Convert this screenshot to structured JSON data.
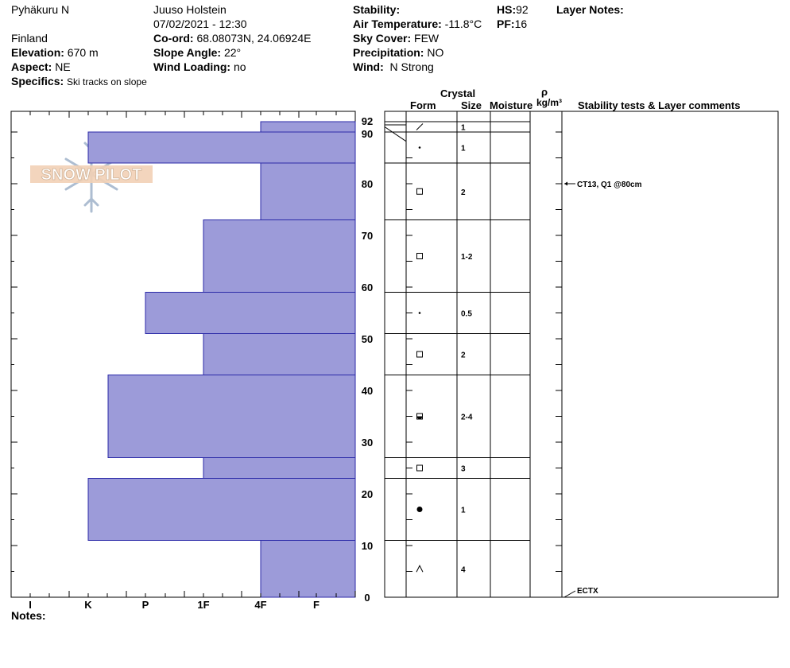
{
  "header": {
    "location": "Pyhäkuru N",
    "country": "Finland",
    "observer": "Juuso Holstein",
    "datetime": "07/02/2021 - 12:30",
    "elevation_label": "Elevation:",
    "elevation_value": "670 m",
    "aspect_label": "Aspect:",
    "aspect_value": "NE",
    "specifics_label": "Specifics:",
    "specifics_value": "Ski tracks on slope",
    "coord_label": "Co-ord:",
    "coord_value": "68.08073N, 24.06924E",
    "slope_label": "Slope Angle:",
    "slope_value": "22°",
    "wind_loading_label": "Wind Loading:",
    "wind_loading_value": "no",
    "stability_label": "Stability:",
    "stability_value": "",
    "air_temp_label": "Air Temperature:",
    "air_temp_value": "-11.8°C",
    "sky_label": "Sky Cover:",
    "sky_value": "FEW",
    "precip_label": "Precipitation:",
    "precip_value": "NO",
    "wind_label": "Wind:",
    "wind_value": "N Strong",
    "hs_label": "HS:",
    "hs_value": "92",
    "pf_label": "PF:",
    "pf_value": "16",
    "layer_notes_label": "Layer Notes:"
  },
  "logo_text": "SNOW PILOT",
  "columns": {
    "crystal": "Crystal",
    "form": "Form",
    "size": "Size",
    "moisture": "Moisture",
    "rho": "ρ",
    "density_unit": "kg/m³",
    "stability": "Stability tests & Layer comments"
  },
  "notes_label": "Notes:",
  "colors": {
    "bar_fill": "#9c9bd9",
    "bar_stroke": "#2b2aa8",
    "line": "#000000"
  },
  "chart_data": {
    "type": "bar",
    "orientation": "horizontal",
    "xlabel": "",
    "ylabel": "",
    "hardness_scale": [
      "I",
      "K",
      "P",
      "1F",
      "4F",
      "F"
    ],
    "y_ticks": [
      0,
      10,
      20,
      30,
      40,
      50,
      60,
      70,
      80,
      90,
      92
    ],
    "ylim": [
      0,
      92
    ],
    "layers": [
      {
        "bottom": 90,
        "top": 92,
        "hardness": "4F",
        "form": "DF",
        "size": "1"
      },
      {
        "bottom": 84,
        "top": 90,
        "hardness": "K",
        "form": "RG",
        "size": "1"
      },
      {
        "bottom": 73,
        "top": 84,
        "hardness": "4F",
        "form": "FC",
        "size": "2"
      },
      {
        "bottom": 59,
        "top": 73,
        "hardness": "1F",
        "form": "FC",
        "size": "1-2"
      },
      {
        "bottom": 51,
        "top": 59,
        "hardness": "P",
        "form": "RG",
        "size": "0.5"
      },
      {
        "bottom": 43,
        "top": 51,
        "hardness": "1F",
        "form": "FC",
        "size": "2"
      },
      {
        "bottom": 27,
        "top": 43,
        "hardness": "K+",
        "form": "FCxr",
        "size": "2-4"
      },
      {
        "bottom": 23,
        "top": 27,
        "hardness": "1F",
        "form": "FC",
        "size": "3"
      },
      {
        "bottom": 11,
        "top": 23,
        "hardness": "K",
        "form": "MF",
        "size": "1"
      },
      {
        "bottom": 0,
        "top": 11,
        "hardness": "4F",
        "form": "DH",
        "size": "4"
      }
    ],
    "stability_tests": [
      {
        "height": 80,
        "label": "CT13, Q1 @80cm"
      },
      {
        "height": 0,
        "label": "ECTX"
      }
    ]
  }
}
